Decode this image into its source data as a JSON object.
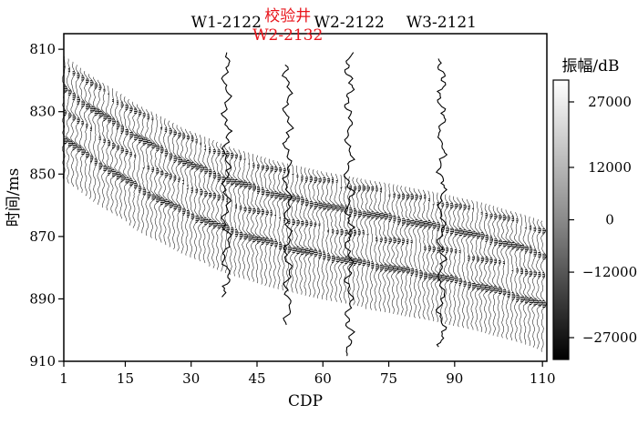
{
  "chart_data": {
    "type": "heatmap",
    "title": "",
    "xlabel": "CDP",
    "ylabel": "时间/ms",
    "xlim": [
      1,
      111
    ],
    "ylim": [
      910,
      805
    ],
    "x_ticks": [
      "1",
      "15",
      "30",
      "45",
      "60",
      "75",
      "90",
      "110"
    ],
    "x_tick_values": [
      1,
      15,
      30,
      45,
      60,
      75,
      90,
      110
    ],
    "y_ticks": [
      "810",
      "830",
      "850",
      "870",
      "890",
      "910"
    ],
    "y_tick_values": [
      810,
      830,
      850,
      870,
      890,
      910
    ],
    "section": {
      "description_of_reflections": "wiggle traces with dipping events",
      "trace_start": 1,
      "trace_end": 110,
      "top_time_start": 812,
      "top_time_end": 865,
      "bottom_time_start": 852,
      "bottom_time_end": 907,
      "event_offsets_ms": [
        3,
        11,
        18,
        27
      ]
    },
    "wells": [
      {
        "name": "W1-2122",
        "cdp": 38,
        "time_top": 811,
        "time_bottom": 890,
        "highlight": false
      },
      {
        "name": "校验井\nW2-2132",
        "cdp": 52,
        "time_top": 815,
        "time_bottom": 899,
        "highlight": true
      },
      {
        "name": "W2-2122",
        "cdp": 66,
        "time_top": 811,
        "time_bottom": 909,
        "highlight": false
      },
      {
        "name": "W3-2121",
        "cdp": 87,
        "time_top": 813,
        "time_bottom": 906,
        "highlight": false
      }
    ],
    "colorbar": {
      "label": "振幅/dB",
      "min": -32000,
      "max": 32000,
      "ticks": [
        "27000",
        "12000",
        "0",
        "−12000",
        "−27000"
      ],
      "tick_values": [
        27000,
        12000,
        0,
        -12000,
        -27000
      ],
      "colormap": "grayscale (black = negative, white = positive)"
    },
    "label_colors": {
      "default": "#000000",
      "highlight": "#e8141b"
    }
  }
}
